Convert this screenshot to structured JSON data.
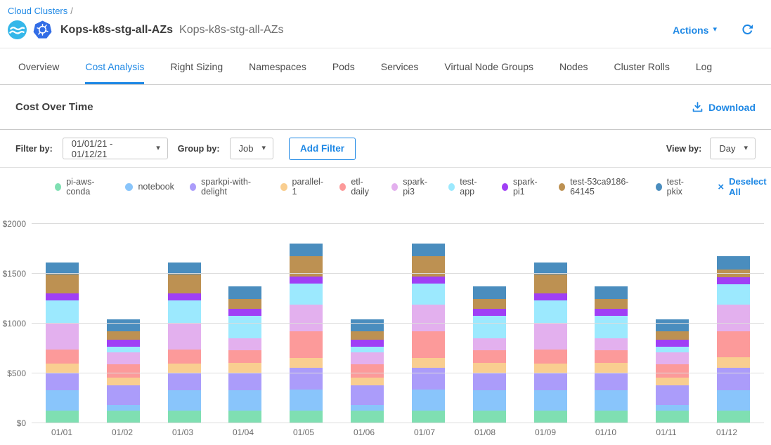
{
  "breadcrumb": {
    "root": "Cloud Clusters",
    "separator": "/"
  },
  "header": {
    "title": "Kops-k8s-stg-all-AZs",
    "subtitle": "Kops-k8s-stg-all-AZs",
    "actions_label": "Actions",
    "icons": [
      "ocean-logo",
      "kubernetes-logo",
      "refresh-icon"
    ]
  },
  "tabs": {
    "items": [
      "Overview",
      "Cost Analysis",
      "Right Sizing",
      "Namespaces",
      "Pods",
      "Services",
      "Virtual Node Groups",
      "Nodes",
      "Cluster Rolls",
      "Log"
    ],
    "active": "Cost Analysis"
  },
  "section": {
    "title": "Cost Over Time",
    "download_label": "Download"
  },
  "filters": {
    "filter_by_label": "Filter by:",
    "date_range_value": "01/01/21 - 01/12/21",
    "group_by_label": "Group by:",
    "group_by_value": "Job",
    "add_filter_label": "Add Filter",
    "view_by_label": "View by:",
    "view_by_value": "Day"
  },
  "legend": {
    "deselect_label": "Deselect All"
  },
  "glyphs": {
    "caret_down": "▾",
    "close": "×"
  },
  "colors": {
    "primary": "#1E88E5",
    "gridline": "#dcdcdc",
    "ocean_logo_bg": "#35B7E9",
    "kubernetes_logo_bg": "#326DE6"
  },
  "chart_data": {
    "type": "bar",
    "stacked": true,
    "title": "Cost Over Time",
    "xlabel": "",
    "ylabel": "",
    "ylim": [
      0,
      2000
    ],
    "grid": true,
    "legend_position": "top",
    "y_ticks": [
      0,
      500,
      1000,
      1500,
      2000
    ],
    "y_tick_labels": [
      "$0",
      "$500",
      "$1000",
      "$1500",
      "$2000"
    ],
    "categories": [
      "01/01",
      "01/02",
      "01/03",
      "01/04",
      "01/05",
      "01/06",
      "01/07",
      "01/08",
      "01/09",
      "01/10",
      "01/11",
      "01/12"
    ],
    "series": [
      {
        "name": "pi-aws-conda",
        "color": "#7FDFB2",
        "values": [
          125,
          125,
          125,
          125,
          125,
          125,
          125,
          125,
          125,
          125,
          125,
          125
        ]
      },
      {
        "name": "notebook",
        "color": "#89C5FB",
        "values": [
          205,
          60,
          205,
          205,
          210,
          60,
          210,
          205,
          205,
          205,
          60,
          205
        ]
      },
      {
        "name": "sparkpi-with-delight",
        "color": "#AB9CFA",
        "values": [
          170,
          195,
          170,
          175,
          220,
          195,
          220,
          175,
          170,
          175,
          195,
          225
        ]
      },
      {
        "name": "parallel-1",
        "color": "#F9CE90",
        "values": [
          100,
          75,
          100,
          100,
          100,
          75,
          100,
          100,
          100,
          100,
          75,
          105
        ]
      },
      {
        "name": "etl-daily",
        "color": "#FC9A9A",
        "values": [
          140,
          135,
          140,
          130,
          270,
          135,
          270,
          130,
          140,
          130,
          135,
          265
        ]
      },
      {
        "name": "spark-pi3",
        "color": "#E3B0EE",
        "values": [
          260,
          120,
          260,
          120,
          265,
          120,
          265,
          120,
          260,
          120,
          120,
          265
        ]
      },
      {
        "name": "test-app",
        "color": "#9CE9FE",
        "values": [
          230,
          55,
          230,
          220,
          215,
          55,
          215,
          220,
          230,
          220,
          55,
          205
        ]
      },
      {
        "name": "spark-pi1",
        "color": "#A03FF5",
        "values": [
          70,
          70,
          70,
          70,
          70,
          70,
          70,
          70,
          70,
          70,
          70,
          70
        ]
      },
      {
        "name": "test-53ca9186-64145",
        "color": "#BD9152",
        "values": [
          195,
          85,
          195,
          100,
          200,
          85,
          200,
          100,
          195,
          100,
          85,
          75
        ]
      },
      {
        "name": "test-pkix",
        "color": "#4A8DBE",
        "values": [
          120,
          125,
          120,
          130,
          130,
          125,
          130,
          130,
          120,
          130,
          125,
          135
        ]
      }
    ]
  }
}
